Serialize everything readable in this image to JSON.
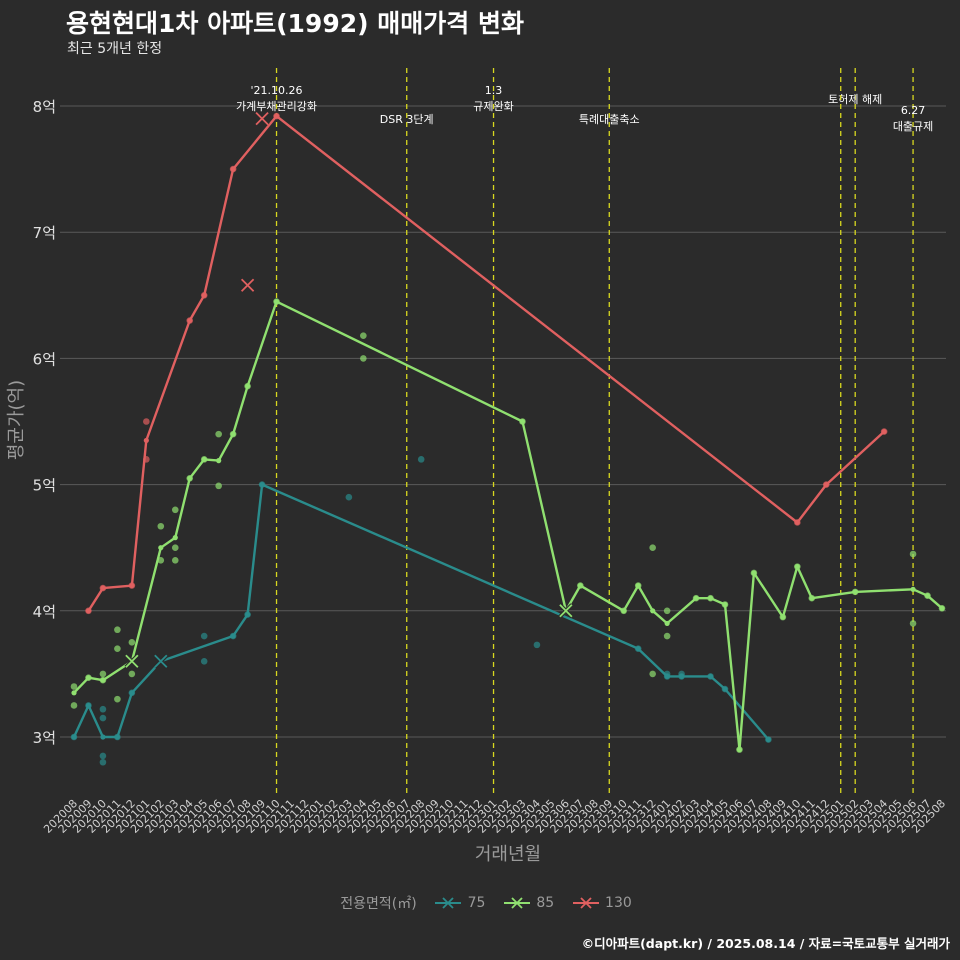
{
  "header": {
    "title": "용현현대1차 아파트(1992) 매매가격 변화",
    "subtitle": "최근 5개년 한정",
    "caption": "©디아파트(dapt.kr) / 2025.08.14 / 자료=국토교통부 실거래가"
  },
  "colors": {
    "a75": "#2a8c8c",
    "a85": "#90e070",
    "a130": "#e06060",
    "event": "#d8d820",
    "grid": "#5a5a5a"
  },
  "chart_data": {
    "type": "line",
    "title": "용현현대1차 아파트(1992) 매매가격 변화",
    "xlabel": "거래년월",
    "ylabel": "평균가(억)",
    "ylim": [
      2.6,
      8.4
    ],
    "y_ticks": [
      {
        "value": 3,
        "label": "3억"
      },
      {
        "value": 4,
        "label": "4억"
      },
      {
        "value": 5,
        "label": "5억"
      },
      {
        "value": 6,
        "label": "6억"
      },
      {
        "value": 7,
        "label": "7억"
      },
      {
        "value": 8,
        "label": "8억"
      }
    ],
    "categories": [
      "202008",
      "202009",
      "202010",
      "202011",
      "202012",
      "202101",
      "202102",
      "202103",
      "202104",
      "202105",
      "202106",
      "202107",
      "202108",
      "202109",
      "202110",
      "202111",
      "202112",
      "202201",
      "202202",
      "202203",
      "202204",
      "202205",
      "202206",
      "202207",
      "202208",
      "202209",
      "202210",
      "202211",
      "202212",
      "202301",
      "202302",
      "202303",
      "202304",
      "202305",
      "202306",
      "202307",
      "202308",
      "202309",
      "202310",
      "202311",
      "202312",
      "202401",
      "202402",
      "202403",
      "202404",
      "202405",
      "202406",
      "202407",
      "202408",
      "202409",
      "202410",
      "202411",
      "202412",
      "202501",
      "202502",
      "202503",
      "202504",
      "202505",
      "202506",
      "202507",
      "202508"
    ],
    "legend_title": "전용면적(㎡)",
    "series": [
      {
        "name": "75",
        "color": "#2a8c8c",
        "line": [
          [
            0,
            3.0
          ],
          [
            1,
            3.25
          ],
          [
            2,
            3.0
          ],
          [
            3,
            3.0
          ],
          [
            4,
            3.35
          ],
          [
            6,
            3.6
          ],
          [
            11,
            3.8
          ],
          [
            12,
            3.97
          ],
          [
            13,
            5.0
          ],
          [
            39,
            3.7
          ],
          [
            41,
            3.48
          ],
          [
            42,
            3.48
          ],
          [
            44,
            3.48
          ],
          [
            45,
            3.38
          ],
          [
            48,
            2.98
          ]
        ],
        "points": [
          [
            0,
            3.0
          ],
          [
            1,
            3.25
          ],
          [
            2,
            2.8
          ],
          [
            2,
            2.85
          ],
          [
            2,
            3.15
          ],
          [
            2,
            3.22
          ],
          [
            3,
            3.0
          ],
          [
            4,
            3.35
          ],
          [
            9,
            3.6
          ],
          [
            9,
            3.8
          ],
          [
            11,
            3.8
          ],
          [
            12,
            3.97
          ],
          [
            13,
            5.0
          ],
          [
            19,
            4.9
          ],
          [
            24,
            5.2
          ],
          [
            32,
            3.73
          ],
          [
            39,
            3.7
          ],
          [
            41,
            3.48
          ],
          [
            41,
            3.5
          ],
          [
            42,
            3.48
          ],
          [
            42,
            3.5
          ],
          [
            44,
            3.48
          ],
          [
            45,
            3.38
          ],
          [
            48,
            2.98
          ]
        ],
        "crosses": [
          [
            6,
            3.6
          ]
        ]
      },
      {
        "name": "85",
        "color": "#90e070",
        "line": [
          [
            0,
            3.35
          ],
          [
            1,
            3.47
          ],
          [
            2,
            3.45
          ],
          [
            4,
            3.6
          ],
          [
            6,
            4.5
          ],
          [
            7,
            4.58
          ],
          [
            8,
            5.05
          ],
          [
            9,
            5.2
          ],
          [
            10,
            5.19
          ],
          [
            11,
            5.4
          ],
          [
            12,
            5.78
          ],
          [
            14,
            6.45
          ],
          [
            31,
            5.5
          ],
          [
            34,
            4.0
          ],
          [
            35,
            4.2
          ],
          [
            38,
            4.0
          ],
          [
            39,
            4.2
          ],
          [
            40,
            4.0
          ],
          [
            41,
            3.9
          ],
          [
            43,
            4.1
          ],
          [
            44,
            4.1
          ],
          [
            45,
            4.05
          ],
          [
            46,
            2.9
          ],
          [
            47,
            4.3
          ],
          [
            49,
            3.95
          ],
          [
            50,
            4.35
          ],
          [
            51,
            4.1
          ],
          [
            54,
            4.15
          ],
          [
            58,
            4.17
          ],
          [
            59,
            4.12
          ],
          [
            60,
            4.02
          ]
        ],
        "points": [
          [
            0,
            3.25
          ],
          [
            0,
            3.4
          ],
          [
            1,
            3.47
          ],
          [
            2,
            3.45
          ],
          [
            2,
            3.5
          ],
          [
            3,
            3.3
          ],
          [
            3,
            3.7
          ],
          [
            3,
            3.85
          ],
          [
            4,
            3.5
          ],
          [
            4,
            3.75
          ],
          [
            6,
            4.4
          ],
          [
            6,
            4.67
          ],
          [
            7,
            4.4
          ],
          [
            7,
            4.5
          ],
          [
            7,
            4.8
          ],
          [
            8,
            5.05
          ],
          [
            9,
            5.2
          ],
          [
            10,
            5.4
          ],
          [
            10,
            4.99
          ],
          [
            11,
            5.4
          ],
          [
            12,
            5.78
          ],
          [
            14,
            6.45
          ],
          [
            20,
            6.0
          ],
          [
            20,
            6.18
          ],
          [
            31,
            5.5
          ],
          [
            34,
            4.0
          ],
          [
            35,
            4.2
          ],
          [
            38,
            4.0
          ],
          [
            39,
            4.2
          ],
          [
            40,
            3.5
          ],
          [
            40,
            4.5
          ],
          [
            41,
            3.8
          ],
          [
            41,
            4.0
          ],
          [
            43,
            4.1
          ],
          [
            44,
            4.1
          ],
          [
            45,
            4.05
          ],
          [
            46,
            2.9
          ],
          [
            47,
            4.3
          ],
          [
            49,
            3.95
          ],
          [
            50,
            4.35
          ],
          [
            51,
            4.1
          ],
          [
            54,
            4.15
          ],
          [
            58,
            3.9
          ],
          [
            58,
            4.45
          ],
          [
            59,
            4.12
          ],
          [
            60,
            4.02
          ]
        ],
        "crosses": [
          [
            4,
            3.6
          ],
          [
            34,
            4.0
          ]
        ]
      },
      {
        "name": "130",
        "color": "#e06060",
        "line": [
          [
            1,
            4.0
          ],
          [
            2,
            4.18
          ],
          [
            4,
            4.2
          ],
          [
            5,
            5.35
          ],
          [
            8,
            6.3
          ],
          [
            9,
            6.5
          ],
          [
            11,
            7.5
          ],
          [
            14,
            7.92
          ],
          [
            50,
            4.7
          ],
          [
            52,
            5.0
          ],
          [
            56,
            5.42
          ]
        ],
        "points": [
          [
            1,
            4.0
          ],
          [
            2,
            4.18
          ],
          [
            4,
            4.2
          ],
          [
            5,
            5.2
          ],
          [
            5,
            5.5
          ],
          [
            8,
            6.3
          ],
          [
            9,
            6.5
          ],
          [
            11,
            7.5
          ],
          [
            14,
            7.92
          ],
          [
            50,
            4.7
          ],
          [
            52,
            5.0
          ],
          [
            56,
            5.42
          ]
        ],
        "crosses": [
          [
            12,
            6.58
          ],
          [
            13,
            7.9
          ]
        ]
      }
    ],
    "events": [
      {
        "index": 14,
        "lines": [
          "'21.10.26",
          "가계부채관리강화"
        ],
        "level": "top"
      },
      {
        "index": 23,
        "lines": [
          "DSR 3단계"
        ],
        "level": "low"
      },
      {
        "index": 29,
        "lines": [
          "1.3",
          "규제완화"
        ],
        "level": "top"
      },
      {
        "index": 37,
        "lines": [
          "특례대출축소"
        ],
        "level": "low"
      },
      {
        "index": 54,
        "lines": [
          "토허제 해제"
        ],
        "level": "mid"
      },
      {
        "index": 58,
        "lines": [
          "6.27",
          "대출규제"
        ],
        "level": "lower"
      }
    ],
    "extra_event_lines": [
      53
    ]
  }
}
